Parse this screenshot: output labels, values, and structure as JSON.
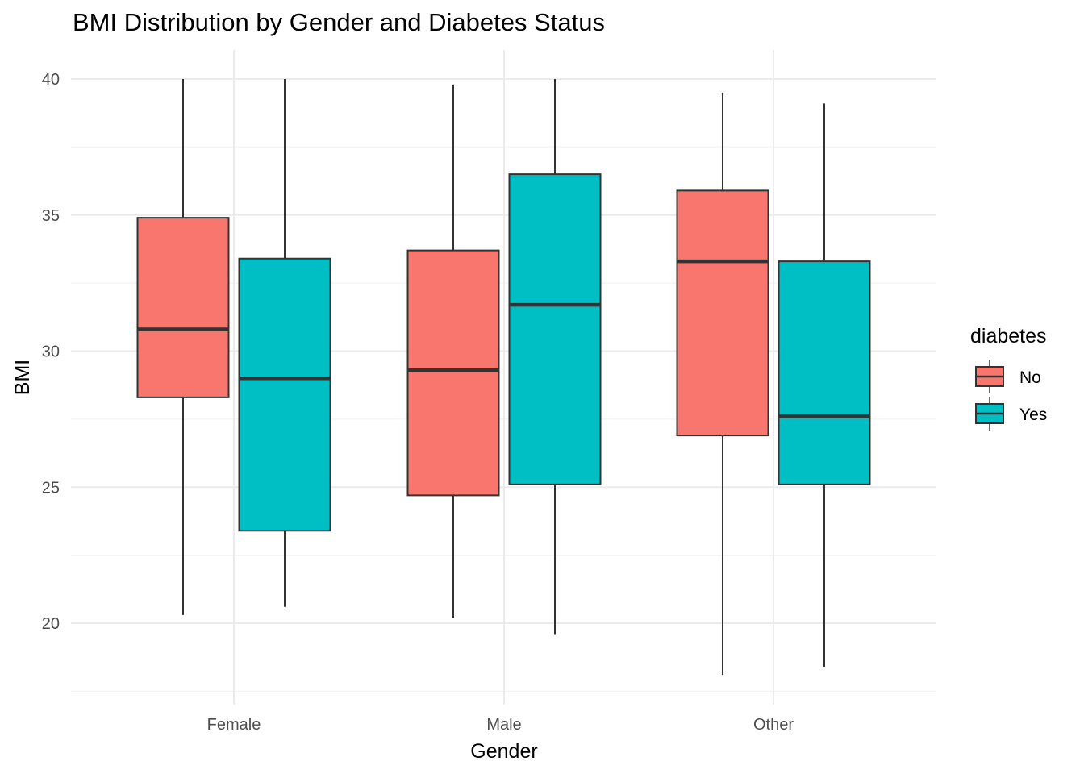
{
  "chart_data": {
    "type": "boxplot",
    "title": "BMI Distribution by Gender and Diabetes Status",
    "xlabel": "Gender",
    "ylabel": "BMI",
    "categories": [
      "Female",
      "Male",
      "Other"
    ],
    "ylim": [
      17.5,
      42.0
    ],
    "yticks": [
      20,
      25,
      30,
      35,
      40
    ],
    "grid": true,
    "legend": {
      "title": "diabetes",
      "position": "right",
      "entries": [
        {
          "label": "No",
          "color": "#f8766d"
        },
        {
          "label": "Yes",
          "color": "#00bfc4"
        }
      ]
    },
    "series": [
      {
        "name": "No",
        "color": "#f8766d",
        "boxes": [
          {
            "category": "Female",
            "min": 20.3,
            "q1": 28.3,
            "median": 30.8,
            "q3": 34.9,
            "max": 40.0
          },
          {
            "category": "Male",
            "min": 20.2,
            "q1": 24.7,
            "median": 29.3,
            "q3": 33.7,
            "max": 39.8
          },
          {
            "category": "Other",
            "min": 18.1,
            "q1": 26.9,
            "median": 33.3,
            "q3": 35.9,
            "max": 39.5
          }
        ]
      },
      {
        "name": "Yes",
        "color": "#00bfc4",
        "boxes": [
          {
            "category": "Female",
            "min": 20.6,
            "q1": 23.4,
            "median": 29.0,
            "q3": 33.4,
            "max": 40.0
          },
          {
            "category": "Male",
            "min": 19.6,
            "q1": 25.1,
            "median": 31.7,
            "q3": 36.5,
            "max": 40.0
          },
          {
            "category": "Other",
            "min": 18.4,
            "q1": 25.1,
            "median": 27.6,
            "q3": 33.3,
            "max": 39.1
          }
        ]
      }
    ]
  }
}
